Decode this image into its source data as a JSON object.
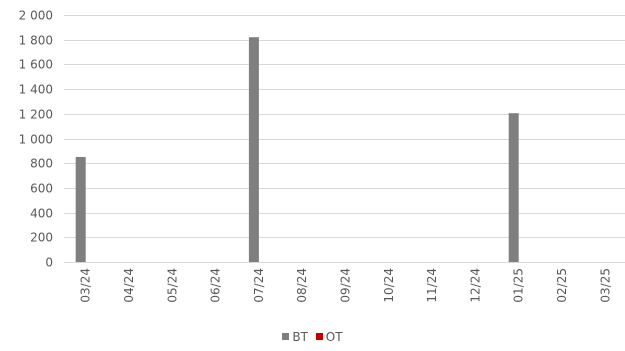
{
  "chart_data": {
    "type": "bar",
    "categories": [
      "03/24",
      "04/24",
      "05/24",
      "06/24",
      "07/24",
      "08/24",
      "09/24",
      "10/24",
      "11/24",
      "12/24",
      "01/25",
      "02/25",
      "03/25"
    ],
    "series": [
      {
        "name": "BT",
        "color": "#7f7f7f",
        "values": [
          850,
          0,
          0,
          0,
          1820,
          0,
          0,
          0,
          0,
          0,
          1205,
          0,
          0
        ]
      },
      {
        "name": "OT",
        "color": "#c00000",
        "values": [
          0,
          0,
          0,
          0,
          0,
          0,
          0,
          0,
          0,
          0,
          0,
          0,
          0
        ]
      }
    ],
    "ylim": [
      0,
      2000
    ],
    "yticks": [
      0,
      200,
      400,
      600,
      800,
      1000,
      1200,
      1400,
      1600,
      1800,
      2000
    ],
    "ytick_labels": [
      "0",
      "200",
      "400",
      "600",
      "800",
      "1 000",
      "1 200",
      "1 400",
      "1 600",
      "1 800",
      "2 000"
    ],
    "grid": true,
    "legend_position": "bottom"
  }
}
